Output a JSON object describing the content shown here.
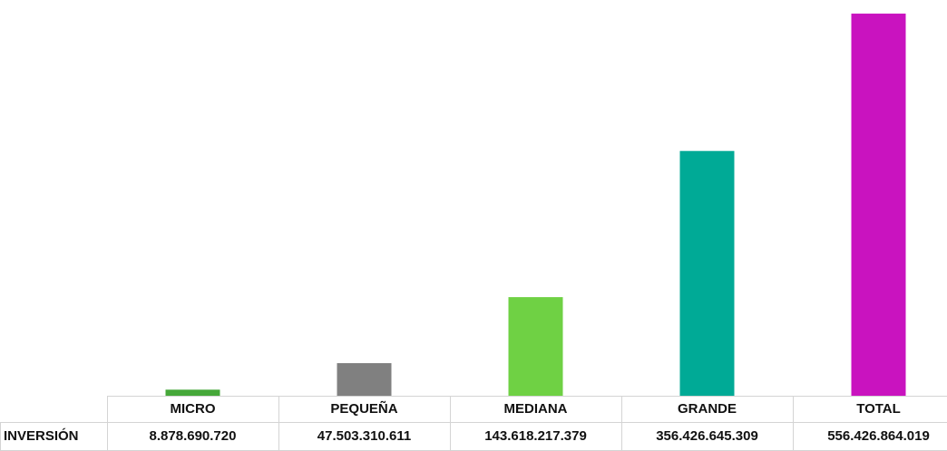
{
  "chart_data": {
    "type": "bar",
    "categories": [
      "MICRO",
      "PEQUEÑA",
      "MEDIANA",
      "GRANDE",
      "TOTAL"
    ],
    "series": [
      {
        "name": "INVERSIÓN",
        "values": [
          8878690720,
          47503310611,
          143618217379,
          356426645309,
          556426864019
        ],
        "value_labels": [
          "8.878.690.720",
          "47.503.310.611",
          "143.618.217.379",
          "356.426.645.309",
          "556.426.864.019"
        ]
      }
    ],
    "colors": [
      "#46a83a",
      "#808080",
      "#6fd144",
      "#00aa96",
      "#c913bf"
    ],
    "ylim": [
      0,
      600000000000
    ]
  }
}
